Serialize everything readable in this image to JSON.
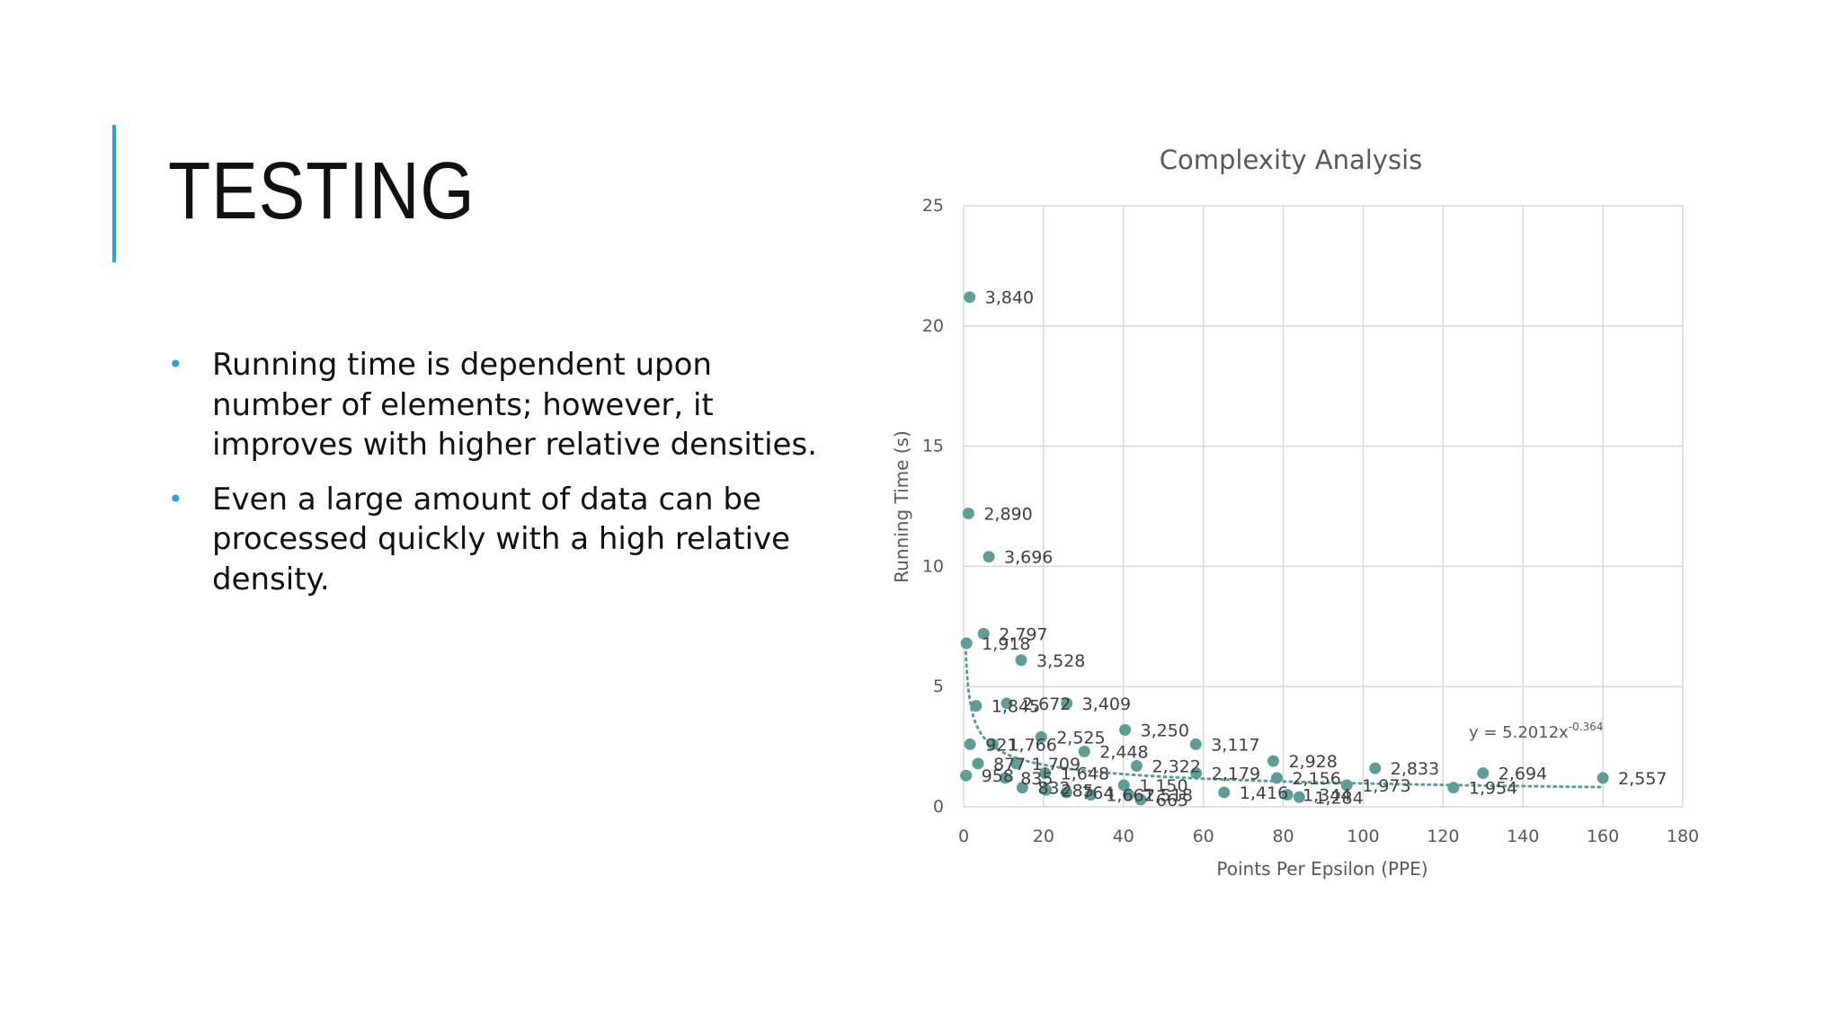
{
  "slide": {
    "title": "TESTING",
    "bullets": [
      "Running time is dependent upon number of elements; however, it improves with higher relative densities.",
      "Even a large amount of data can be processed quickly with a high relative density."
    ],
    "accent_color": "#2aa3d6"
  },
  "chart_data": {
    "type": "scatter",
    "title": "Complexity Analysis",
    "xlabel": "Points Per Epsilon (PPE)",
    "ylabel": "Running Time (s)",
    "xlim": [
      0,
      180
    ],
    "ylim": [
      0,
      25
    ],
    "xticks": [
      0,
      20,
      40,
      60,
      80,
      100,
      120,
      140,
      160,
      180
    ],
    "yticks": [
      0,
      5,
      10,
      15,
      20,
      25
    ],
    "grid": true,
    "marker_color": "#5f9e96",
    "trendline": {
      "type": "power",
      "a": 5.2012,
      "b": -0.364,
      "equation": "y = 5.2012x",
      "exponent": "-0.364"
    },
    "points": [
      {
        "x": 1.5,
        "y": 21.2,
        "label": "3,840"
      },
      {
        "x": 1.2,
        "y": 12.2,
        "label": "2,890"
      },
      {
        "x": 6.3,
        "y": 10.4,
        "label": "3,696"
      },
      {
        "x": 5,
        "y": 7.2,
        "label": "2,797"
      },
      {
        "x": 0.7,
        "y": 6.8,
        "label": "1,918"
      },
      {
        "x": 14.4,
        "y": 6.1,
        "label": "3,528"
      },
      {
        "x": 3.1,
        "y": 4.2,
        "label": "1,845"
      },
      {
        "x": 10.8,
        "y": 4.3,
        "label": "2,672"
      },
      {
        "x": 25.8,
        "y": 4.3,
        "label": "3,409"
      },
      {
        "x": 40.4,
        "y": 3.2,
        "label": "3,250"
      },
      {
        "x": 1.6,
        "y": 2.6,
        "label": "921"
      },
      {
        "x": 7.3,
        "y": 2.6,
        "label": "1,766"
      },
      {
        "x": 19.4,
        "y": 2.9,
        "label": "2,525"
      },
      {
        "x": 58.1,
        "y": 2.6,
        "label": "3,117"
      },
      {
        "x": 30.2,
        "y": 2.3,
        "label": "2,448"
      },
      {
        "x": 77.5,
        "y": 1.9,
        "label": "2,928"
      },
      {
        "x": 3.6,
        "y": 1.8,
        "label": "877"
      },
      {
        "x": 13.2,
        "y": 1.8,
        "label": "1,709"
      },
      {
        "x": 43.3,
        "y": 1.7,
        "label": "2,322"
      },
      {
        "x": 103,
        "y": 1.6,
        "label": "2,833"
      },
      {
        "x": 0.6,
        "y": 1.3,
        "label": "958"
      },
      {
        "x": 10.4,
        "y": 1.2,
        "label": "835"
      },
      {
        "x": 20.4,
        "y": 1.4,
        "label": "1,648"
      },
      {
        "x": 58.2,
        "y": 1.4,
        "label": "2,179"
      },
      {
        "x": 78.4,
        "y": 1.2,
        "label": "2,156"
      },
      {
        "x": 130,
        "y": 1.4,
        "label": "2,694"
      },
      {
        "x": 160,
        "y": 1.2,
        "label": "2,557"
      },
      {
        "x": 14.7,
        "y": 0.8,
        "label": "832"
      },
      {
        "x": 20.6,
        "y": 0.7,
        "label": "285"
      },
      {
        "x": 25.7,
        "y": 0.6,
        "label": "764"
      },
      {
        "x": 40.1,
        "y": 0.9,
        "label": "1,150"
      },
      {
        "x": 31.8,
        "y": 0.5,
        "label": "1,662"
      },
      {
        "x": 41.3,
        "y": 0.5,
        "label": "1,518"
      },
      {
        "x": 44.3,
        "y": 0.3,
        "label": "665"
      },
      {
        "x": 65.2,
        "y": 0.6,
        "label": "1,416"
      },
      {
        "x": 95.9,
        "y": 0.9,
        "label": "1,973"
      },
      {
        "x": 81,
        "y": 0.5,
        "label": "1,344"
      },
      {
        "x": 84,
        "y": 0.4,
        "label": "1,284"
      },
      {
        "x": 122.6,
        "y": 0.8,
        "label": "1,954"
      }
    ]
  }
}
